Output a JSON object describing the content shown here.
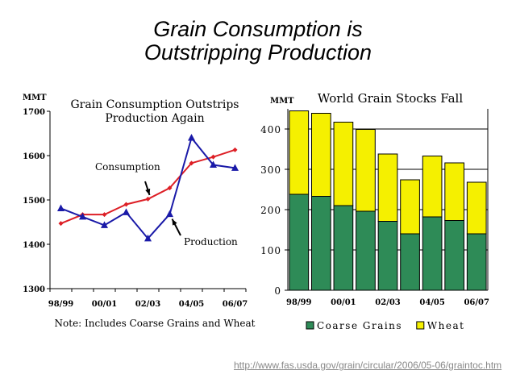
{
  "slide": {
    "title_line1": "Grain Consumption is",
    "title_line2": "Outstripping Production",
    "source_url": "http://www.fas.usda.gov/grain/circular/2006/05-06/graintoc.htm"
  },
  "chart_data": [
    {
      "type": "line",
      "title": "Grain Consumption Outstrips Production Again",
      "title_line1": "Grain Consumption Outstrips",
      "title_line2": "Production Again",
      "ylabel": "MMT",
      "ylim": [
        1300,
        1700
      ],
      "yticks": [
        1300,
        1400,
        1500,
        1600,
        1700
      ],
      "x": [
        "98/99",
        "99/00",
        "00/01",
        "01/02",
        "02/03",
        "03/04",
        "04/05",
        "05/06",
        "06/07"
      ],
      "xtick_labels": [
        "98/99",
        "00/01",
        "02/03",
        "04/05",
        "06/07"
      ],
      "series": [
        {
          "name": "Consumption",
          "color": "#dd1f26",
          "marker": "diamond",
          "values": [
            1447,
            1467,
            1467,
            1490,
            1502,
            1527,
            1583,
            1597,
            1613
          ]
        },
        {
          "name": "Production",
          "color": "#1a1aa8",
          "marker": "triangle",
          "values": [
            1481,
            1462,
            1443,
            1472,
            1413,
            1468,
            1640,
            1579,
            1572
          ]
        }
      ],
      "annotations": [
        {
          "text": "Consumption",
          "arrow_to_series": "Consumption",
          "arrow_to_x": "02/03"
        },
        {
          "text": "Production",
          "arrow_to_series": "Production",
          "arrow_to_x": "03/04"
        }
      ],
      "note": "Note: Includes Coarse Grains and Wheat",
      "grid": false
    },
    {
      "type": "bar",
      "stacked": true,
      "title": "World Grain Stocks Fall",
      "ylabel": "MMT",
      "ylim": [
        0,
        450
      ],
      "yticks": [
        0,
        100,
        200,
        300,
        400
      ],
      "categories": [
        "98/99",
        "99/00",
        "00/01",
        "01/02",
        "02/03",
        "03/04",
        "04/05",
        "05/06",
        "06/07"
      ],
      "xtick_labels": [
        "98/99",
        "00/01",
        "02/03",
        "04/05",
        "06/07"
      ],
      "series": [
        {
          "name": "Coarse Grains",
          "color": "#2e8b57",
          "values": [
            238,
            233,
            210,
            196,
            171,
            140,
            182,
            173,
            140
          ]
        },
        {
          "name": "Wheat",
          "color": "#f5f000",
          "values": [
            207,
            206,
            207,
            203,
            167,
            134,
            151,
            143,
            128
          ]
        }
      ],
      "legend": "bottom",
      "grid": true
    }
  ]
}
